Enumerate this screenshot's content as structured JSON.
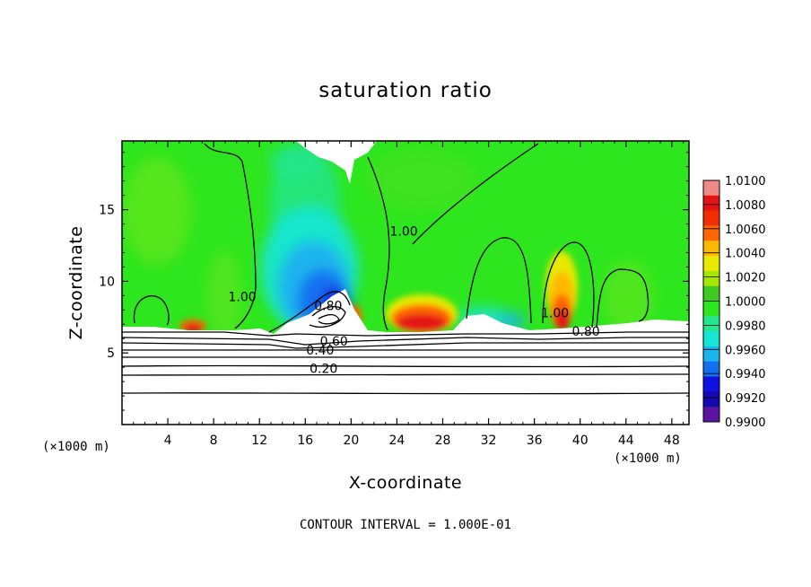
{
  "chart_data": {
    "type": "heatmap",
    "title": "saturation ratio",
    "xlabel": "X-coordinate",
    "ylabel": "Z-coordinate",
    "x_unit": "(×1000 m)",
    "x_ticks": [
      4,
      8,
      12,
      16,
      20,
      24,
      28,
      32,
      36,
      40,
      44,
      48
    ],
    "y_ticks": [
      5,
      10,
      15
    ],
    "xlim": [
      0,
      49.5
    ],
    "ylim": [
      0,
      19.8
    ],
    "contour_interval_text": "CONTOUR INTERVAL = 1.000E-01",
    "colorbar": {
      "labels": [
        "1.0100",
        "1.0080",
        "1.0060",
        "1.0040",
        "1.0020",
        "1.0000",
        "0.9980",
        "0.9960",
        "0.9940",
        "0.9920",
        "0.9900"
      ],
      "colors": [
        "#f08a86",
        "#e41414",
        "#f22e00",
        "#ff6600",
        "#ffb800",
        "#e8e800",
        "#a6e600",
        "#3ecb20",
        "#2ee61e",
        "#22e58e",
        "#16e5d6",
        "#1ab4ee",
        "#1270f0",
        "#1010e0",
        "#1408b0",
        "#5c14a0"
      ]
    },
    "contour_labels": [
      {
        "text": "1.00",
        "x": 24.6,
        "y": 13.2
      },
      {
        "text": "1.00",
        "x": 10.5,
        "y": 8.6
      },
      {
        "text": "0.80",
        "x": 18.0,
        "y": 8.0
      },
      {
        "text": "0.60",
        "x": 18.5,
        "y": 5.5
      },
      {
        "text": "0.40",
        "x": 17.3,
        "y": 4.9
      },
      {
        "text": "0.20",
        "x": 17.6,
        "y": 3.6
      },
      {
        "text": "1.00",
        "x": 37.8,
        "y": 7.5
      },
      {
        "text": "0.80",
        "x": 40.5,
        "y": 6.2
      }
    ]
  },
  "colors": {
    "background": "#ffffff",
    "field_green": "#2ee61e",
    "low_layer": "#ffffff"
  }
}
